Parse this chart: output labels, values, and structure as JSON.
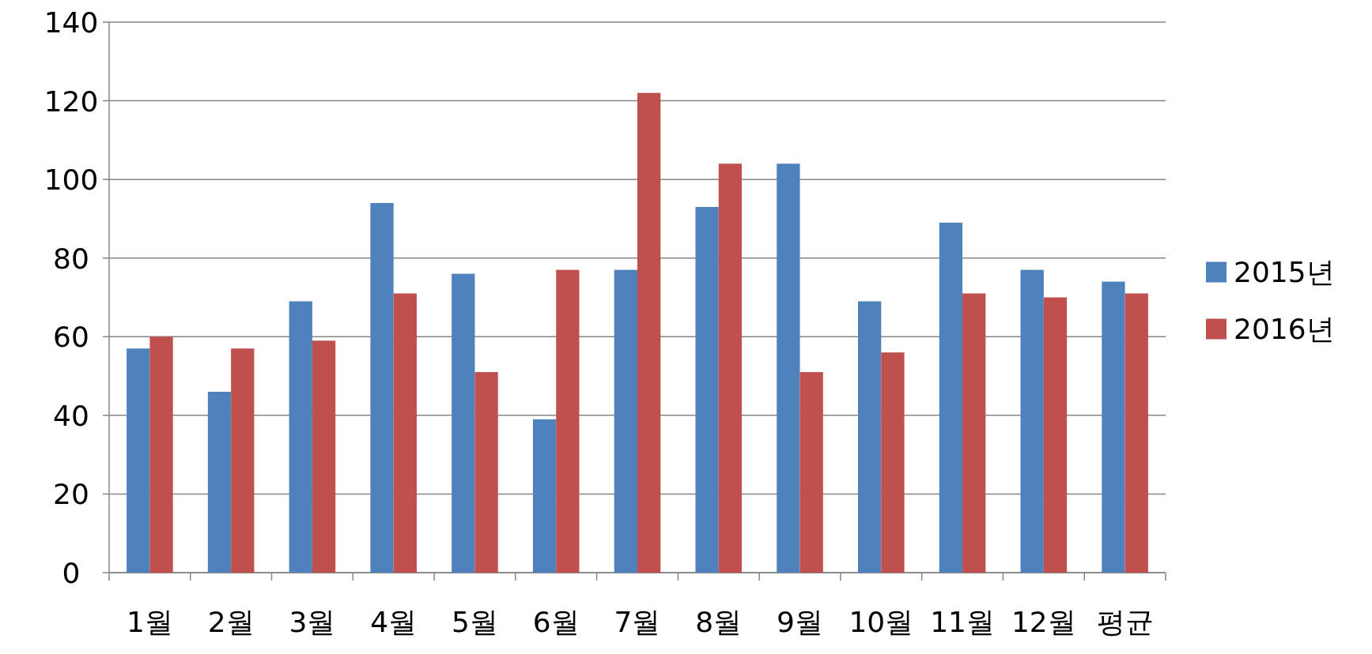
{
  "chart_data": {
    "type": "bar",
    "categories": [
      "1월",
      "2월",
      "3월",
      "4월",
      "5월",
      "6월",
      "7월",
      "8월",
      "9월",
      "10월",
      "11월",
      "12월",
      "평균"
    ],
    "series": [
      {
        "name": "2015년",
        "color": "#4f81bd",
        "values": [
          57,
          46,
          69,
          94,
          76,
          39,
          77,
          93,
          104,
          69,
          89,
          77,
          74
        ]
      },
      {
        "name": "2016년",
        "color": "#c0504d",
        "values": [
          60,
          57,
          59,
          71,
          51,
          77,
          122,
          104,
          51,
          56,
          71,
          70,
          71
        ]
      }
    ],
    "ylim": [
      0,
      140
    ],
    "yticks": [
      0,
      20,
      40,
      60,
      80,
      100,
      120,
      140
    ],
    "grid": "y",
    "legend": "right"
  }
}
